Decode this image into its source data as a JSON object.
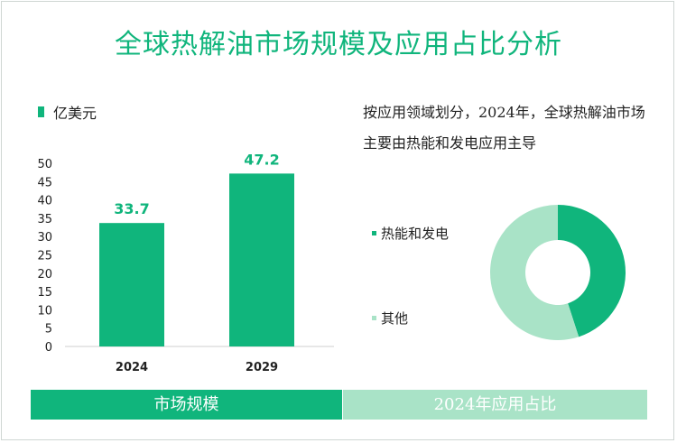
{
  "title": "全球热解油市场规模及应用占比分析",
  "unit_label": "亿美元",
  "description": "按应用领域划分，2024年，全球热解油市场主要由热能和发电应用主导",
  "footer": {
    "left": "市场规模",
    "right": "2024年应用占比"
  },
  "colors": {
    "primary": "#10b57c",
    "secondary": "#a9e3c7"
  },
  "chart_data": [
    {
      "type": "bar",
      "categories": [
        "2024",
        "2029"
      ],
      "values": [
        33.7,
        47.2
      ],
      "ylim": [
        0,
        50
      ],
      "yticks": [
        0,
        5,
        10,
        15,
        20,
        25,
        30,
        35,
        40,
        45,
        50
      ],
      "grid": false,
      "color": "#10b57c"
    },
    {
      "type": "pie",
      "donut": true,
      "labels": [
        "热能和发电",
        "其他"
      ],
      "values": [
        45,
        55
      ],
      "colors": [
        "#10b57c",
        "#a9e3c7"
      ],
      "legend": "left"
    }
  ]
}
